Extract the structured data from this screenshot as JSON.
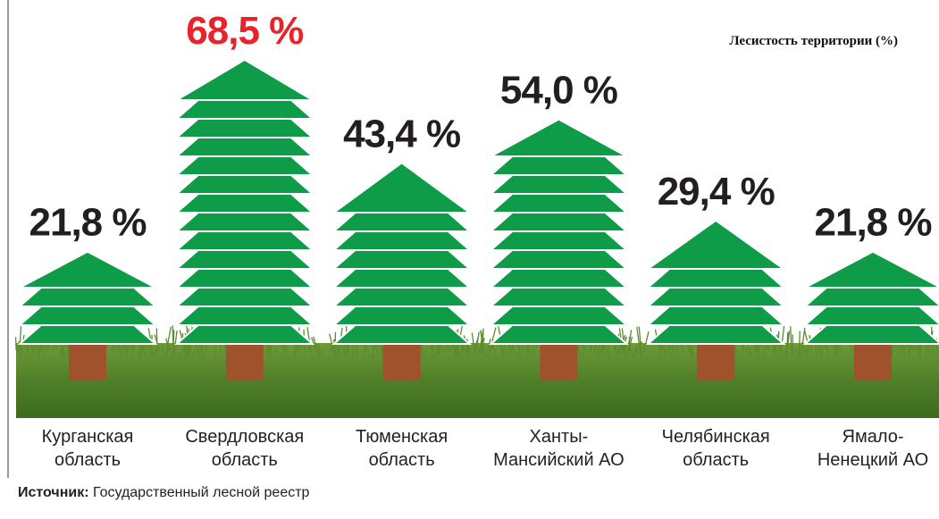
{
  "chart_data": {
    "type": "tree",
    "title": "Лесистость территории (%)",
    "categories": [
      "Курганская\nобласть",
      "Свердловская\nобласть",
      "Тюменская\nобласть",
      "Ханты-\nМансийский АО",
      "Челябинская\nобласть",
      "Ямало-\nНенецкий АО"
    ],
    "values": [
      21.8,
      68.5,
      43.4,
      54.0,
      29.4,
      21.8
    ],
    "value_labels": [
      "21,8 %",
      "68,5 %",
      "43,4 %",
      "54,0 %",
      "29,4 %",
      "21,8 %"
    ],
    "value_label_colors": [
      "#231f20",
      "#e8232a",
      "#231f20",
      "#231f20",
      "#231f20",
      "#231f20"
    ],
    "color": "#0e9c48",
    "trunk_color": "#a0522d",
    "source_label": "Источник:",
    "source": "Государственный лесной реестр"
  }
}
